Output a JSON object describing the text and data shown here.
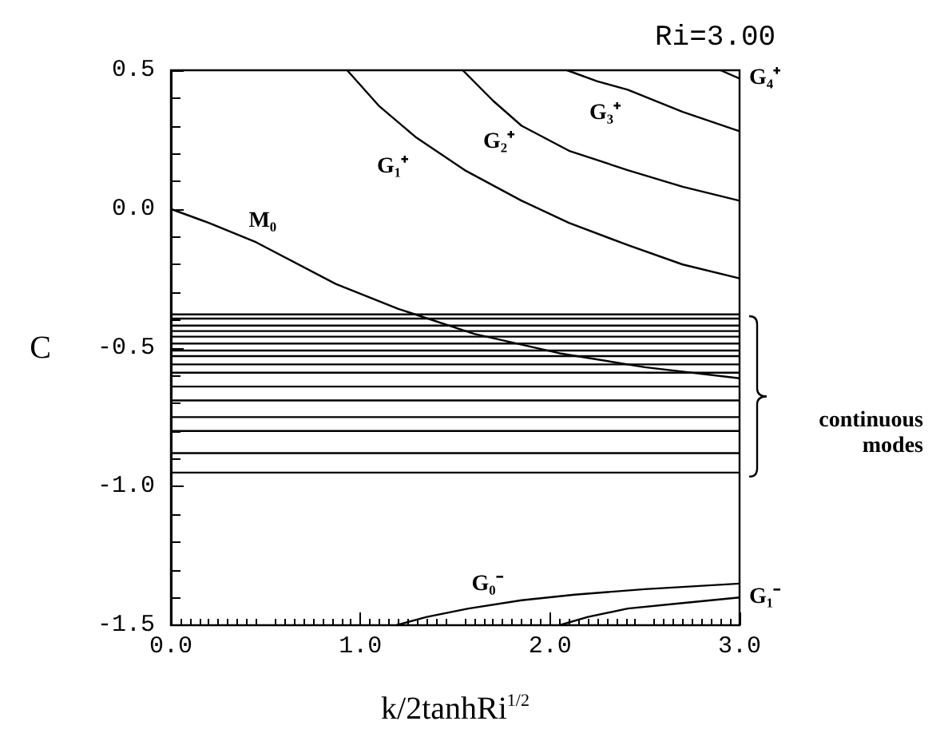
{
  "chart_data": {
    "type": "line",
    "xlabel": "k/2tanhRi$^{1/2}$",
    "ylabel": "C",
    "annotations": [
      "Ri=3.00",
      "continuous modes"
    ],
    "xlim": [
      0,
      3
    ],
    "ylim": [
      -1.5,
      0.5
    ],
    "xticks": [
      {
        "value": 0,
        "label": "0.0"
      },
      {
        "value": 1,
        "label": "1.0"
      },
      {
        "value": 2,
        "label": "2.0"
      },
      {
        "value": 3,
        "label": "3.0"
      }
    ],
    "yticks": [
      {
        "value": -1.5,
        "label": "-1.5"
      },
      {
        "value": -1,
        "label": "-1.0"
      },
      {
        "value": -0.5,
        "label": "-0.5"
      },
      {
        "value": 0,
        "label": "0.0"
      },
      {
        "value": 0.5,
        "label": "0.5"
      }
    ],
    "grid": false,
    "legend": false,
    "marker": "none",
    "line_style": "solid",
    "series": [
      {
        "name": "M₀",
        "color": "#000000",
        "x": [
          0,
          0.2,
          0.45,
          0.87,
          1.2,
          1.6,
          2.05,
          2.5,
          3
        ],
        "values": [
          0,
          -0.05,
          -0.12,
          -0.27,
          -0.36,
          -0.45,
          -0.52,
          -0.57,
          -0.61
        ]
      },
      {
        "name": "G₁⁺",
        "color": "#000000",
        "x": [
          0.93,
          1.1,
          1.29,
          1.55,
          1.85,
          2.1,
          2.41,
          2.7,
          3
        ],
        "values": [
          0.5,
          0.37,
          0.26,
          0.14,
          0.03,
          -0.05,
          -0.13,
          -0.2,
          -0.25
        ]
      },
      {
        "name": "G₂⁺",
        "color": "#000000",
        "x": [
          1.54,
          1.7,
          1.85,
          2.1,
          2.41,
          2.7,
          3
        ],
        "values": [
          0.5,
          0.39,
          0.3,
          0.21,
          0.14,
          0.08,
          0.03
        ]
      },
      {
        "name": "G₃⁺",
        "color": "#000000",
        "x": [
          2.09,
          2.25,
          2.41,
          2.7,
          3
        ],
        "values": [
          0.5,
          0.46,
          0.43,
          0.35,
          0.28
        ]
      },
      {
        "name": "G₄⁺",
        "color": "#000000",
        "x": [
          2.9,
          3
        ],
        "values": [
          0.5,
          0.47
        ]
      },
      {
        "name": "G₀⁻",
        "color": "#000000",
        "x": [
          1.19,
          1.35,
          1.57,
          1.85,
          2.13,
          2.5,
          3
        ],
        "values": [
          -1.5,
          -1.47,
          -1.44,
          -1.41,
          -1.39,
          -1.37,
          -1.35
        ]
      },
      {
        "name": "G₁⁻",
        "color": "#000000",
        "x": [
          2.05,
          2.2,
          2.41,
          2.7,
          3
        ],
        "values": [
          -1.5,
          -1.47,
          -1.44,
          -1.42,
          -1.4
        ]
      },
      {
        "color": "#000000",
        "x": [
          0,
          3
        ],
        "values": [
          -0.38,
          -0.38
        ]
      },
      {
        "color": "#000000",
        "x": [
          0,
          3
        ],
        "values": [
          -0.395,
          -0.395
        ]
      },
      {
        "color": "#000000",
        "x": [
          0,
          3
        ],
        "values": [
          -0.42,
          -0.42
        ]
      },
      {
        "color": "#000000",
        "x": [
          0,
          3
        ],
        "values": [
          -0.44,
          -0.44
        ]
      },
      {
        "color": "#000000",
        "x": [
          0,
          3
        ],
        "values": [
          -0.46,
          -0.46
        ]
      },
      {
        "color": "#000000",
        "x": [
          0,
          3
        ],
        "values": [
          -0.485,
          -0.485
        ]
      },
      {
        "color": "#000000",
        "x": [
          0,
          3
        ],
        "values": [
          -0.51,
          -0.51
        ]
      },
      {
        "color": "#000000",
        "x": [
          0,
          3
        ],
        "values": [
          -0.53,
          -0.53
        ]
      },
      {
        "color": "#000000",
        "x": [
          0,
          3
        ],
        "values": [
          -0.56,
          -0.56
        ]
      },
      {
        "color": "#000000",
        "x": [
          0,
          3
        ],
        "values": [
          -0.59,
          -0.59
        ]
      },
      {
        "color": "#000000",
        "x": [
          0,
          3
        ],
        "values": [
          -0.64,
          -0.64
        ]
      },
      {
        "color": "#000000",
        "x": [
          0,
          3
        ],
        "values": [
          -0.69,
          -0.69
        ]
      },
      {
        "color": "#000000",
        "x": [
          0,
          3
        ],
        "values": [
          -0.75,
          -0.75
        ]
      },
      {
        "color": "#000000",
        "x": [
          0,
          3
        ],
        "values": [
          -0.8,
          -0.8
        ]
      },
      {
        "color": "#000000",
        "x": [
          0,
          3
        ],
        "values": [
          -0.88,
          -0.88
        ]
      },
      {
        "color": "#000000",
        "x": [
          0,
          3
        ],
        "values": [
          -0.95,
          -0.95
        ]
      }
    ]
  }
}
